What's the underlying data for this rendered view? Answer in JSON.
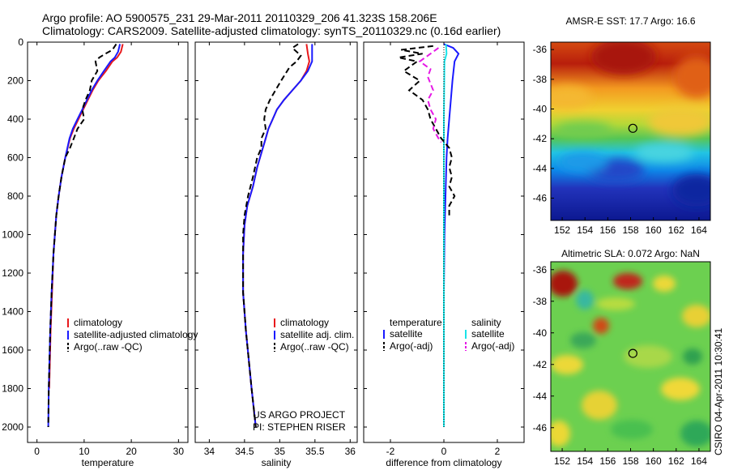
{
  "header": {
    "line1": "Argo profile: AO 5900575_231 29-Mar-2011 20110329_206 41.323S 158.206E",
    "line2": "Climatology: CARS2009. Satellite-adjusted climatology: synTS_20110329.nc (0.16d earlier)"
  },
  "stamp": "CSIRO 04-Apr-2011 10:30:41",
  "colors": {
    "red": "#e8191c",
    "blue": "#1a1aff",
    "black": "#000000",
    "cyan": "#19e3e8",
    "magenta": "#e619e6"
  },
  "chart_data": [
    {
      "type": "line",
      "id": "temperature",
      "xlabel": "temperature",
      "xlim": [
        -2,
        32
      ],
      "ylim": [
        2080,
        0
      ],
      "xticks": [
        0,
        10,
        20,
        30
      ],
      "yticks": [
        0,
        200,
        400,
        600,
        800,
        1000,
        1200,
        1400,
        1600,
        1800,
        2000
      ],
      "legend": [
        "climatology",
        "satellite-adjusted climatology",
        "Argo(..raw -QC)"
      ],
      "series": [
        {
          "name": "climatology",
          "color": "red",
          "style": "solid",
          "x": [
            18.2,
            17.8,
            17.0,
            16.0,
            14.6,
            13.0,
            11.8,
            10.8,
            9.8,
            8.8,
            7.8,
            7.0,
            6.0,
            5.2,
            4.6,
            4.1,
            3.5,
            3.2,
            2.9,
            2.6
          ],
          "y": [
            10,
            50,
            80,
            100,
            150,
            200,
            250,
            300,
            350,
            400,
            450,
            500,
            600,
            700,
            800,
            900,
            1100,
            1300,
            1500,
            1800
          ]
        },
        {
          "name": "satellite-adjusted climatology",
          "color": "blue",
          "style": "solid",
          "x": [
            17.6,
            17.2,
            16.5,
            15.6,
            14.2,
            12.8,
            11.6,
            10.6,
            9.6,
            8.6,
            7.6,
            6.9,
            6.0,
            5.2,
            4.6,
            4.1,
            3.5,
            3.1,
            2.8,
            2.5,
            2.4
          ],
          "y": [
            10,
            50,
            80,
            100,
            150,
            200,
            250,
            300,
            350,
            400,
            450,
            500,
            600,
            700,
            800,
            900,
            1100,
            1300,
            1500,
            1800,
            2000
          ]
        },
        {
          "name": "Argo(..raw -QC)",
          "color": "black",
          "style": "dashed",
          "x": [
            16.8,
            16.0,
            14.5,
            13.2,
            12.4,
            12.8,
            11.6,
            11.2,
            10.3,
            9.6,
            10.0,
            8.6,
            7.8,
            7.0,
            6.0,
            5.2,
            4.6,
            4.1,
            3.5,
            3.1,
            2.8,
            2.5,
            2.4
          ],
          "y": [
            10,
            40,
            60,
            80,
            100,
            150,
            200,
            250,
            300,
            350,
            400,
            450,
            500,
            550,
            600,
            700,
            800,
            900,
            1100,
            1300,
            1500,
            1800,
            2000
          ]
        }
      ]
    },
    {
      "type": "line",
      "id": "salinity",
      "xlabel": "salinity",
      "xlim": [
        33.8,
        36.1
      ],
      "ylim": [
        2080,
        0
      ],
      "xticks": [
        34,
        34.5,
        35,
        35.5,
        36
      ],
      "legend": [
        "climatology",
        "satellite adj. clim.",
        "Argo(..raw -QC)"
      ],
      "series": [
        {
          "name": "climatology",
          "color": "red",
          "style": "solid",
          "x": [
            35.38,
            35.4,
            35.42,
            35.38,
            35.3,
            35.18,
            35.06,
            34.96,
            34.9,
            34.84,
            34.8,
            34.76,
            34.68,
            34.62,
            34.54,
            34.5,
            34.48,
            34.48,
            34.52,
            34.6,
            34.66
          ],
          "y": [
            10,
            60,
            100,
            150,
            200,
            250,
            300,
            350,
            400,
            450,
            500,
            550,
            650,
            750,
            850,
            950,
            1100,
            1300,
            1500,
            1800,
            2000
          ]
        },
        {
          "name": "satellite adj. clim.",
          "color": "blue",
          "style": "solid",
          "x": [
            35.46,
            35.46,
            35.46,
            35.4,
            35.3,
            35.18,
            35.06,
            34.96,
            34.9,
            34.84,
            34.8,
            34.76,
            34.68,
            34.62,
            34.54,
            34.5,
            34.48,
            34.48,
            34.52,
            34.6,
            34.66
          ],
          "y": [
            10,
            60,
            100,
            150,
            200,
            250,
            300,
            350,
            400,
            450,
            500,
            550,
            650,
            750,
            850,
            950,
            1100,
            1300,
            1500,
            1800,
            2000
          ]
        },
        {
          "name": "Argo(..raw -QC)",
          "color": "black",
          "style": "dashed",
          "x": [
            35.26,
            35.18,
            35.3,
            35.24,
            35.14,
            35.02,
            34.94,
            34.86,
            34.8,
            34.78,
            34.8,
            34.74,
            34.74,
            34.68,
            34.62,
            34.55,
            34.5,
            34.48,
            34.48,
            34.52,
            34.6,
            34.66
          ],
          "y": [
            10,
            30,
            70,
            100,
            130,
            200,
            250,
            300,
            350,
            400,
            450,
            500,
            550,
            600,
            700,
            800,
            900,
            1000,
            1300,
            1500,
            1800,
            2000
          ]
        }
      ]
    },
    {
      "type": "line",
      "id": "difference",
      "xlabel": "difference from climatology",
      "xlim": [
        -3,
        3
      ],
      "ylim": [
        2080,
        0
      ],
      "xticks": [
        -2,
        0,
        2
      ],
      "legend_left": {
        "title": "temperature",
        "items": [
          "satellite",
          "Argo(-adj)"
        ]
      },
      "legend_right": {
        "title": "salinity",
        "items": [
          "satellite",
          "Argo(-adj)"
        ]
      },
      "series": [
        {
          "name": "temperature satellite",
          "color": "blue",
          "style": "solid",
          "x": [
            0.0,
            0.35,
            0.55,
            0.4,
            0.32,
            0.26,
            0.2,
            0.14,
            0.1,
            0.06,
            0.02,
            0.0,
            0.0
          ],
          "y": [
            10,
            30,
            60,
            100,
            200,
            300,
            400,
            500,
            600,
            800,
            1000,
            1300,
            2000
          ]
        },
        {
          "name": "salinity satellite",
          "color": "cyan",
          "style": "solid",
          "x": [
            0.08,
            0.1,
            0.02,
            0.0,
            0.0,
            0.0
          ],
          "y": [
            10,
            60,
            100,
            400,
            900,
            2000
          ]
        },
        {
          "name": "temperature Argo(-adj)",
          "color": "black",
          "style": "dashed",
          "x": [
            -0.4,
            -1.6,
            -0.8,
            -1.7,
            -1.0,
            -1.5,
            -0.9,
            -1.3,
            -0.8,
            -0.6,
            -0.5,
            -0.3,
            -0.1,
            0.2,
            0.3,
            0.2,
            0.3,
            0.2,
            0.4,
            0.2,
            0.2
          ],
          "y": [
            20,
            40,
            60,
            80,
            100,
            150,
            200,
            250,
            300,
            350,
            400,
            450,
            500,
            550,
            600,
            650,
            700,
            750,
            800,
            850,
            900
          ]
        },
        {
          "name": "salinity Argo(-adj)",
          "color": "magenta",
          "style": "dashed",
          "x": [
            -0.2,
            -0.9,
            -0.5,
            -0.6,
            -0.4,
            -0.6,
            -0.5,
            -0.3,
            -0.4,
            -0.2,
            -0.1
          ],
          "y": [
            30,
            100,
            140,
            180,
            250,
            300,
            350,
            400,
            450,
            500,
            520
          ]
        },
        {
          "name": "zero line",
          "color": "black",
          "style": "dotted",
          "x": [
            0,
            0
          ],
          "y": [
            0,
            2000
          ]
        }
      ]
    },
    {
      "type": "heatmap",
      "id": "sst",
      "title": "AMSR-E SST: 17.7 Argo: 16.6",
      "xlim": [
        151,
        165
      ],
      "ylim": [
        -47.5,
        -35.5
      ],
      "xticks": [
        152,
        154,
        156,
        158,
        160,
        162,
        164
      ],
      "yticks": [
        -36,
        -38,
        -40,
        -42,
        -44,
        -46
      ],
      "marker": {
        "lon": 158.2,
        "lat": -41.3
      }
    },
    {
      "type": "heatmap",
      "id": "sla",
      "title": "Altimetric SLA: 0.072 Argo: NaN",
      "xlim": [
        151,
        165
      ],
      "ylim": [
        -47.5,
        -35.5
      ],
      "xticks": [
        152,
        154,
        156,
        158,
        160,
        162,
        164
      ],
      "yticks": [
        -36,
        -38,
        -40,
        -42,
        -44,
        -46
      ],
      "marker": {
        "lon": 158.2,
        "lat": -41.3
      }
    }
  ],
  "panel_notes": {
    "project": "US ARGO PROJECT",
    "pi": "PI: STEPHEN RISER"
  }
}
